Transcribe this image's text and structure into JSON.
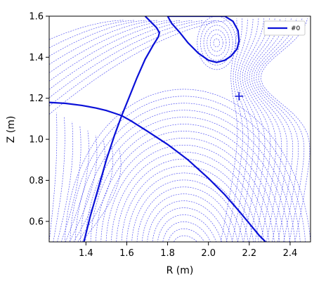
{
  "chart_data": {
    "type": "line",
    "xlabel": "R (m)",
    "ylabel": "Z (m)",
    "xlim": [
      1.22,
      2.5
    ],
    "ylim": [
      0.5,
      1.6
    ],
    "xticks": [
      "1.4",
      "1.6",
      "1.8",
      "2.0",
      "2.2",
      "2.4"
    ],
    "yticks": [
      "0.6",
      "0.8",
      "1.0",
      "1.2",
      "1.4",
      "1.6"
    ],
    "grid": false,
    "legend": {
      "position": "top-right",
      "entries": [
        "#0"
      ]
    },
    "colors": {
      "separatrix": "#0a10d8",
      "contours": "#3a3af0"
    },
    "marker": {
      "symbol": "+",
      "x": 2.15,
      "y": 1.21
    },
    "separatrix": [
      {
        "name": "left-leg-to-top",
        "x": [
          1.39,
          1.42,
          1.46,
          1.5,
          1.54,
          1.575,
          1.61,
          1.65,
          1.69,
          1.73,
          1.755,
          1.76,
          1.745,
          1.71,
          1.69
        ],
        "y": [
          0.5,
          0.62,
          0.76,
          0.9,
          1.02,
          1.115,
          1.2,
          1.3,
          1.39,
          1.46,
          1.5,
          1.52,
          1.545,
          1.58,
          1.6
        ]
      },
      {
        "name": "upper-left-to-xpoint",
        "x": [
          1.22,
          1.3,
          1.38,
          1.45,
          1.5,
          1.54,
          1.575
        ],
        "y": [
          1.18,
          1.175,
          1.165,
          1.152,
          1.14,
          1.127,
          1.115
        ]
      },
      {
        "name": "lower-boundary",
        "x": [
          1.575,
          1.62,
          1.7,
          1.8,
          1.9,
          2.0,
          2.08,
          2.15,
          2.2,
          2.25,
          2.28
        ],
        "y": [
          1.115,
          1.09,
          1.04,
          0.975,
          0.9,
          0.81,
          0.73,
          0.65,
          0.59,
          0.53,
          0.5
        ]
      },
      {
        "name": "upper-loop",
        "x": [
          1.8,
          1.82,
          1.86,
          1.9,
          1.95,
          2.0,
          2.04,
          2.08,
          2.11,
          2.14,
          2.15,
          2.145,
          2.12,
          2.08,
          2.03,
          1.97,
          1.91,
          1.86,
          1.82,
          1.8
        ],
        "y": [
          1.6,
          1.565,
          1.52,
          1.47,
          1.42,
          1.385,
          1.375,
          1.385,
          1.405,
          1.44,
          1.48,
          1.53,
          1.575,
          1.6,
          1.6,
          1.6,
          1.6,
          1.6,
          1.6,
          1.6
        ]
      }
    ]
  }
}
